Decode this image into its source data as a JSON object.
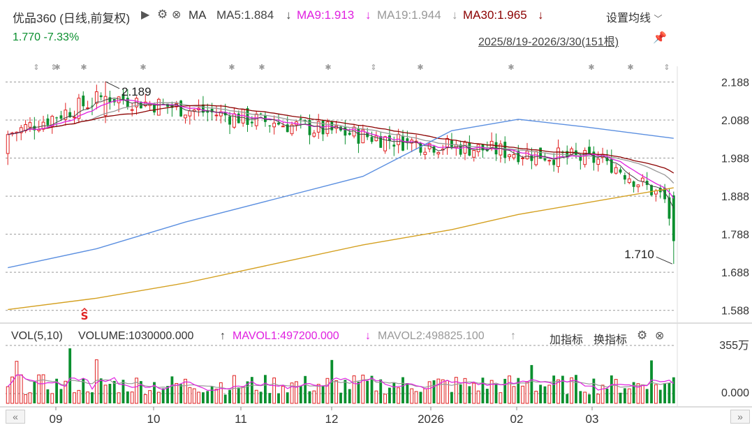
{
  "header": {
    "stock_title": "优品360 (日线,前复权)",
    "indicator_name": "MA",
    "ma_lines": [
      {
        "label": "MA5:1.884",
        "arrow": "↓",
        "color": "#444444"
      },
      {
        "label": "MA9:1.913",
        "arrow": "↓",
        "color": "#e020e0"
      },
      {
        "label": "MA19:1.944",
        "arrow": "↓",
        "color": "#999999"
      },
      {
        "label": "MA30:1.965",
        "arrow": "↓",
        "color": "#8b0000"
      }
    ],
    "settings_label": "设置均线",
    "price_change": "1.770  -7.33%",
    "date_range": "2025/8/19-2026/3/30(151根)"
  },
  "volume_header": {
    "vol_label": "VOL(5,10)",
    "volume_value": "VOLUME:1030000.000",
    "volume_arrow": "↑",
    "mavol1": "MAVOL1:497200.000",
    "mavol1_arrow": "↓",
    "mavol2": "MAVOL2:498825.100",
    "mavol2_arrow": "↑",
    "add_indicator": "加指标",
    "switch_indicator": "换指标"
  },
  "colors": {
    "up": "#e02020",
    "down": "#0a8f2e",
    "ma5": "#444444",
    "ma9": "#e020e0",
    "ma19": "#999999",
    "ma30": "#8b0000",
    "ma_long1": "#5b8fe0",
    "ma_long2": "#d4a020",
    "grid": "#999999",
    "axis_text": "#333333"
  },
  "chart_data": {
    "type": "candlestick",
    "x_axis_labels": [
      "09",
      "10",
      "11",
      "12",
      "2026",
      "02",
      "03"
    ],
    "y_ticks": [
      "2.188",
      "2.088",
      "1.988",
      "1.888",
      "1.788",
      "1.688",
      "1.588"
    ],
    "ylim": [
      1.56,
      2.22
    ],
    "annotations": [
      {
        "text": "2.189",
        "kind": "high"
      },
      {
        "text": "1.710",
        "kind": "low"
      },
      {
        "text": "S",
        "kind": "signal"
      }
    ],
    "bar_count": 151,
    "ohlc_key_points": [
      {
        "index": 0,
        "open": 2.0,
        "high": 2.06,
        "low": 1.97,
        "close": 2.05
      },
      {
        "index": 22,
        "open": 2.1,
        "high": 2.189,
        "low": 2.08,
        "close": 2.15
      },
      {
        "index": 60,
        "open": 2.07,
        "high": 2.1,
        "low": 2.05,
        "close": 2.08
      },
      {
        "index": 90,
        "open": 2.04,
        "high": 2.06,
        "low": 2.01,
        "close": 2.03
      },
      {
        "index": 135,
        "open": 1.99,
        "high": 2.01,
        "low": 1.97,
        "close": 1.98
      },
      {
        "index": 148,
        "open": 1.91,
        "high": 1.92,
        "low": 1.87,
        "close": 1.88
      },
      {
        "index": 150,
        "open": 1.89,
        "high": 1.9,
        "low": 1.71,
        "close": 1.77
      }
    ],
    "series": [
      {
        "name": "MA5",
        "color": "#444444"
      },
      {
        "name": "MA9",
        "color": "#e020e0"
      },
      {
        "name": "MA19",
        "color": "#999999"
      },
      {
        "name": "MA30",
        "color": "#8b0000"
      }
    ],
    "long_ma_a": [
      [
        0,
        1.7
      ],
      [
        20,
        1.75
      ],
      [
        40,
        1.82
      ],
      [
        60,
        1.88
      ],
      [
        80,
        1.94
      ],
      [
        100,
        2.06
      ],
      [
        115,
        2.09
      ],
      [
        130,
        2.07
      ],
      [
        150,
        2.04
      ]
    ],
    "long_ma_b": [
      [
        0,
        1.59
      ],
      [
        20,
        1.62
      ],
      [
        40,
        1.66
      ],
      [
        60,
        1.71
      ],
      [
        80,
        1.76
      ],
      [
        100,
        1.8
      ],
      [
        115,
        1.84
      ],
      [
        130,
        1.87
      ],
      [
        150,
        1.91
      ]
    ],
    "volume_panel": {
      "y_ticks": [
        "355万",
        "0.000"
      ],
      "ylim": [
        0,
        3550000
      ]
    }
  },
  "nav": {
    "left": "«",
    "right": "»"
  }
}
